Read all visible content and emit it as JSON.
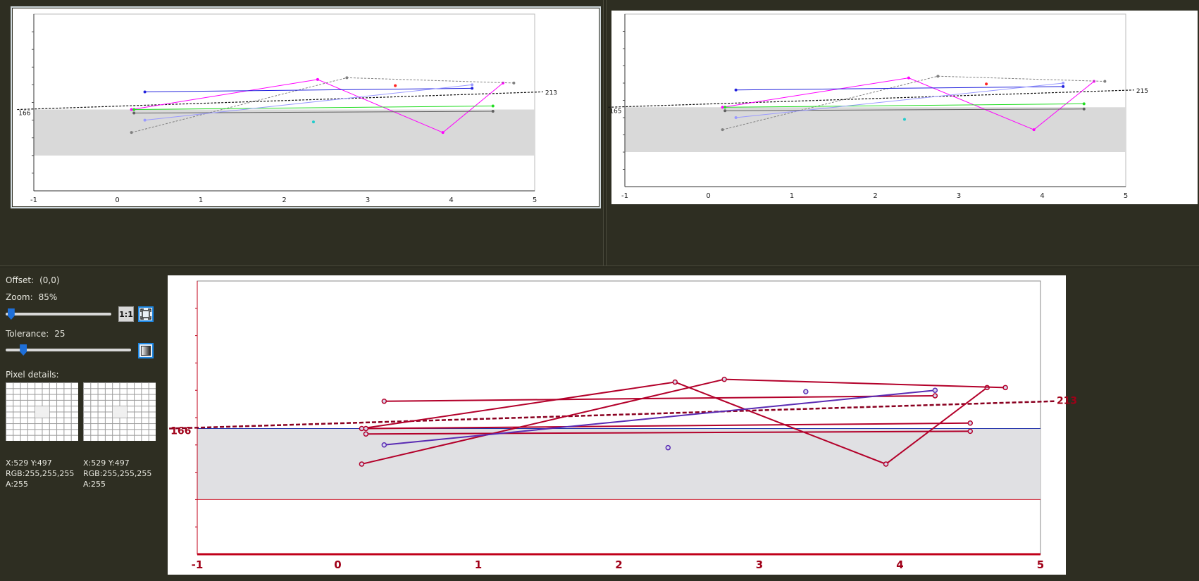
{
  "controls": {
    "offset_label": "Offset:",
    "offset_value": "(0,0)",
    "zoom_label": "Zoom:",
    "zoom_value": "85%",
    "zoom_fraction": 0.02,
    "btn_one_to_one": "1:1",
    "tolerance_label": "Tolerance:",
    "tolerance_value": "25",
    "tolerance_fraction": 0.12,
    "pixel_details_label": "Pixel details:"
  },
  "pixel_left": {
    "pos": "X:529 Y:497",
    "rgb": "RGB:255,255,255",
    "alpha": "A:255"
  },
  "pixel_right": {
    "pos": "X:529 Y:497",
    "rgb": "RGB:255,255,255",
    "alpha": "A:255"
  },
  "icons": {
    "fit": "fit-to-window-icon",
    "tolerance": "gradient-swatch-icon"
  },
  "chart_data": [
    {
      "id": "left",
      "type": "line",
      "xlim": [
        -1,
        5
      ],
      "ylim": [
        0,
        10
      ],
      "x_ticks": [
        "-1",
        "0",
        "1",
        "2",
        "3",
        "4",
        "5"
      ],
      "band": [
        2,
        4.6
      ],
      "dashed_line": {
        "x": [
          -1.2,
          5.1
        ],
        "y": [
          4.6,
          5.6
        ]
      },
      "left_label": "166",
      "right_label": "213",
      "series": [
        {
          "color": "#ff00ff",
          "x": [
            0.17,
            2.4,
            3.9,
            4.62
          ],
          "y": [
            4.6,
            6.3,
            3.3,
            6.1
          ]
        },
        {
          "color": "#808080",
          "x": [
            0.17,
            2.75,
            4.75
          ],
          "y": [
            3.3,
            6.4,
            6.1
          ]
        },
        {
          "color": "#2222dd",
          "x": [
            0.33,
            4.25
          ],
          "y": [
            5.6,
            5.8
          ]
        },
        {
          "color": "#22dd22",
          "x": [
            0.2,
            4.5
          ],
          "y": [
            4.6,
            4.8
          ]
        },
        {
          "color": "#606060",
          "x": [
            0.2,
            4.5
          ],
          "y": [
            4.4,
            4.5
          ]
        },
        {
          "color": "#9999ff",
          "x": [
            0.33,
            4.25
          ],
          "y": [
            4.0,
            6.0
          ]
        }
      ],
      "points": [
        {
          "color": "#ff2222",
          "x": 3.33,
          "y": 5.95
        },
        {
          "color": "#22cccc",
          "x": 2.35,
          "y": 3.9
        }
      ]
    },
    {
      "id": "right",
      "type": "line",
      "xlim": [
        -1,
        5
      ],
      "ylim": [
        0,
        10
      ],
      "x_ticks": [
        "-1",
        "0",
        "1",
        "2",
        "3",
        "4",
        "5"
      ],
      "band": [
        2,
        4.6
      ],
      "dashed_line": {
        "x": [
          -1.2,
          5.1
        ],
        "y": [
          4.6,
          5.6
        ]
      },
      "left_label": "165",
      "right_label": "215",
      "series": [
        {
          "color": "#ff00ff",
          "x": [
            0.17,
            2.4,
            3.9,
            4.62
          ],
          "y": [
            4.6,
            6.3,
            3.3,
            6.1
          ]
        },
        {
          "color": "#808080",
          "x": [
            0.17,
            2.75,
            4.75
          ],
          "y": [
            3.3,
            6.4,
            6.1
          ]
        },
        {
          "color": "#2222dd",
          "x": [
            0.33,
            4.25
          ],
          "y": [
            5.6,
            5.8
          ]
        },
        {
          "color": "#22dd22",
          "x": [
            0.2,
            4.5
          ],
          "y": [
            4.6,
            4.8
          ]
        },
        {
          "color": "#606060",
          "x": [
            0.2,
            4.5
          ],
          "y": [
            4.4,
            4.5
          ]
        },
        {
          "color": "#9999ff",
          "x": [
            0.33,
            4.25
          ],
          "y": [
            4.0,
            6.0
          ]
        }
      ],
      "points": [
        {
          "color": "#ff2222",
          "x": 3.33,
          "y": 5.95
        },
        {
          "color": "#22cccc",
          "x": 2.35,
          "y": 3.9
        }
      ]
    },
    {
      "id": "diff",
      "type": "line",
      "xlim": [
        -1,
        5
      ],
      "ylim": [
        0,
        10
      ],
      "x_ticks": [
        "-1",
        "0",
        "1",
        "2",
        "3",
        "4",
        "5"
      ],
      "band": [
        2,
        4.6
      ],
      "dashed_line": {
        "x": [
          -1.2,
          5.1
        ],
        "y": [
          4.6,
          5.6
        ]
      },
      "left_label": "166",
      "right_label": "213",
      "series": [
        {
          "color": "#b3002a",
          "x": [
            0.17,
            2.4,
            3.9,
            4.62
          ],
          "y": [
            4.6,
            6.3,
            3.3,
            6.1
          ]
        },
        {
          "color": "#b3002a",
          "x": [
            0.17,
            2.75,
            4.75
          ],
          "y": [
            3.3,
            6.4,
            6.1
          ]
        },
        {
          "color": "#b3002a",
          "x": [
            0.33,
            4.25
          ],
          "y": [
            5.6,
            5.8
          ]
        },
        {
          "color": "#b3002a",
          "x": [
            0.2,
            4.5
          ],
          "y": [
            4.6,
            4.8
          ]
        },
        {
          "color": "#b3002a",
          "x": [
            0.2,
            4.5
          ],
          "y": [
            4.4,
            4.5
          ]
        },
        {
          "color": "#5a2bb3",
          "x": [
            0.33,
            4.25
          ],
          "y": [
            4.0,
            6.0
          ]
        }
      ],
      "points": [
        {
          "color": "#5a2bb3",
          "x": 3.33,
          "y": 5.95
        },
        {
          "color": "#5a2bb3",
          "x": 2.35,
          "y": 3.9
        }
      ]
    }
  ]
}
